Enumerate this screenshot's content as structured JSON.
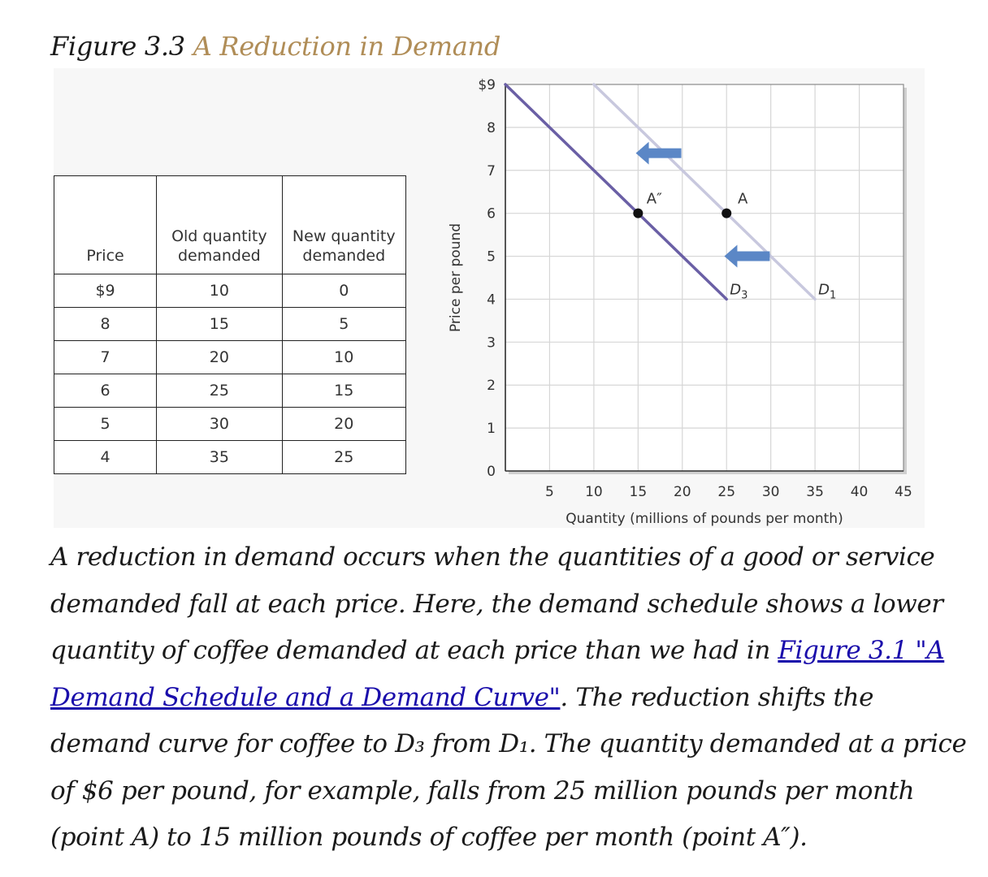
{
  "figure": {
    "label": "Figure 3.3",
    "title": "A Reduction in Demand",
    "accent_color": "#b08d57"
  },
  "table": {
    "headers": [
      "Price",
      "Old quantity demanded",
      "New quantity demanded"
    ],
    "rows": [
      [
        "$9",
        "10",
        "0"
      ],
      [
        "8",
        "15",
        "5"
      ],
      [
        "7",
        "20",
        "10"
      ],
      [
        "6",
        "25",
        "15"
      ],
      [
        "5",
        "30",
        "20"
      ],
      [
        "4",
        "35",
        "25"
      ]
    ]
  },
  "chart_data": {
    "type": "line",
    "xlabel": "Quantity (millions of pounds per month)",
    "ylabel": "Price per pound",
    "xlim": [
      0,
      45
    ],
    "ylim": [
      0,
      9
    ],
    "x_ticks": [
      "5",
      "10",
      "15",
      "20",
      "25",
      "30",
      "35",
      "40",
      "45"
    ],
    "y_ticks": [
      "0",
      "1",
      "2",
      "3",
      "4",
      "5",
      "6",
      "7",
      "8",
      "$9"
    ],
    "grid": true,
    "series": [
      {
        "name": "D1",
        "color": "#c8c8de",
        "points": [
          [
            10,
            9
          ],
          [
            35,
            4
          ]
        ]
      },
      {
        "name": "D3",
        "color": "#6a5fa5",
        "points": [
          [
            0,
            9
          ],
          [
            25,
            4
          ]
        ]
      }
    ],
    "labels": [
      {
        "text": "D",
        "sub": "1",
        "x": 35,
        "y": 4
      },
      {
        "text": "D",
        "sub": "3",
        "x": 25,
        "y": 4
      }
    ],
    "points": [
      {
        "name": "A",
        "x": 25,
        "y": 6
      },
      {
        "name": "A″",
        "x": 15,
        "y": 6
      }
    ],
    "arrows": [
      {
        "direction": "left",
        "x": 17.5,
        "y": 7.4,
        "color": "#5b87c6"
      },
      {
        "direction": "left",
        "x": 27.5,
        "y": 5,
        "color": "#5b87c6"
      }
    ]
  },
  "caption": {
    "text_before": "A reduction in demand occurs when the quantities of a good or service demanded fall at each price. Here, the demand schedule shows a lower quantity of coffee demanded at each price than we had in ",
    "link_text": "Figure 3.1 \"A Demand Schedule and a Demand Curve\"",
    "text_after": ". The reduction shifts the demand curve for coffee to D₃ from D₁. The quantity demanded at a price of $6 per pound, for example, falls from 25 million pounds per month (point A) to 15 million pounds of coffee per month (point A″).",
    "link_color": "#1a0dab"
  }
}
